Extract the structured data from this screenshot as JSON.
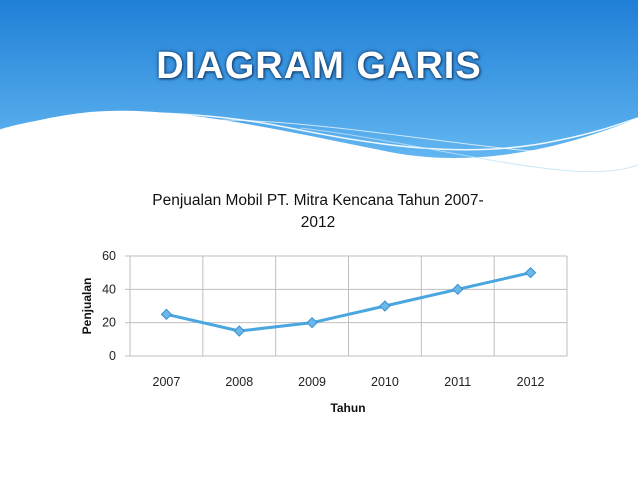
{
  "slide": {
    "title": "DIAGRAM GARIS"
  },
  "colors": {
    "header_top": "#1f7fd6",
    "header_bottom": "#62b6f0",
    "line": "#4aa6df",
    "marker": "#6ab7e8",
    "grid": "#bfbfbf"
  },
  "chart_data": {
    "type": "line",
    "title": "Penjualan Mobil PT. Mitra Kencana Tahun 2007-2012",
    "title_lines": [
      "Penjualan Mobil PT. Mitra Kencana Tahun 2007-",
      "2012"
    ],
    "xlabel": "Tahun",
    "ylabel": "Penjualan",
    "categories": [
      "2007",
      "2008",
      "2009",
      "2010",
      "2011",
      "2012"
    ],
    "series": [
      {
        "values": [
          25,
          15,
          20,
          30,
          40,
          50
        ]
      }
    ],
    "yticks": [
      0,
      20,
      40,
      60
    ],
    "ylim": [
      0,
      60
    ],
    "grid": true,
    "legend": "none"
  }
}
